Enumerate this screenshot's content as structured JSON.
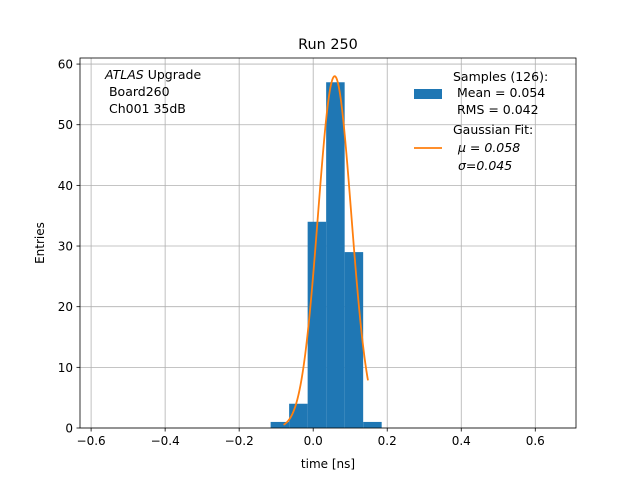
{
  "chart_data": {
    "type": "bar",
    "title": "Run 250",
    "xlabel": "time [ns]",
    "ylabel": "Entries",
    "xlim": [
      -0.63,
      0.71
    ],
    "ylim": [
      0,
      61
    ],
    "grid": true,
    "xticks": [
      -0.6,
      -0.4,
      -0.2,
      0.0,
      0.2,
      0.4,
      0.6
    ],
    "xtick_labels": [
      "−0.6",
      "−0.4",
      "−0.2",
      "0.0",
      "0.2",
      "0.4",
      "0.6"
    ],
    "yticks": [
      0,
      10,
      20,
      30,
      40,
      50,
      60
    ],
    "ytick_labels": [
      "0",
      "10",
      "20",
      "30",
      "40",
      "50",
      "60"
    ],
    "annotation": {
      "line1_italic": "ATLAS",
      "line1_rest": " Upgrade",
      "line2": " Board260",
      "line3": " Ch001 35dB"
    },
    "histogram": {
      "color": "#1f77b4",
      "bins": [
        {
          "x0": -0.115,
          "x1": -0.065,
          "count": 1
        },
        {
          "x0": -0.065,
          "x1": -0.015,
          "count": 4
        },
        {
          "x0": -0.015,
          "x1": 0.035,
          "count": 34
        },
        {
          "x0": 0.035,
          "x1": 0.085,
          "count": 57
        },
        {
          "x0": 0.085,
          "x1": 0.135,
          "count": 29
        },
        {
          "x0": 0.135,
          "x1": 0.185,
          "count": 1
        }
      ]
    },
    "fit": {
      "color": "#ff7f0e",
      "mu": 0.058,
      "sigma": 0.045,
      "amplitude": 58,
      "x_range": [
        -0.08,
        0.148
      ]
    },
    "legend": {
      "position": "upper right",
      "hist_lines": [
        "Samples (126):",
        " Mean = 0.054",
        " RMS = 0.042"
      ],
      "fit_lines": [
        "Gaussian Fit:",
        "μ = 0.058",
        "σ=0.045"
      ]
    }
  }
}
